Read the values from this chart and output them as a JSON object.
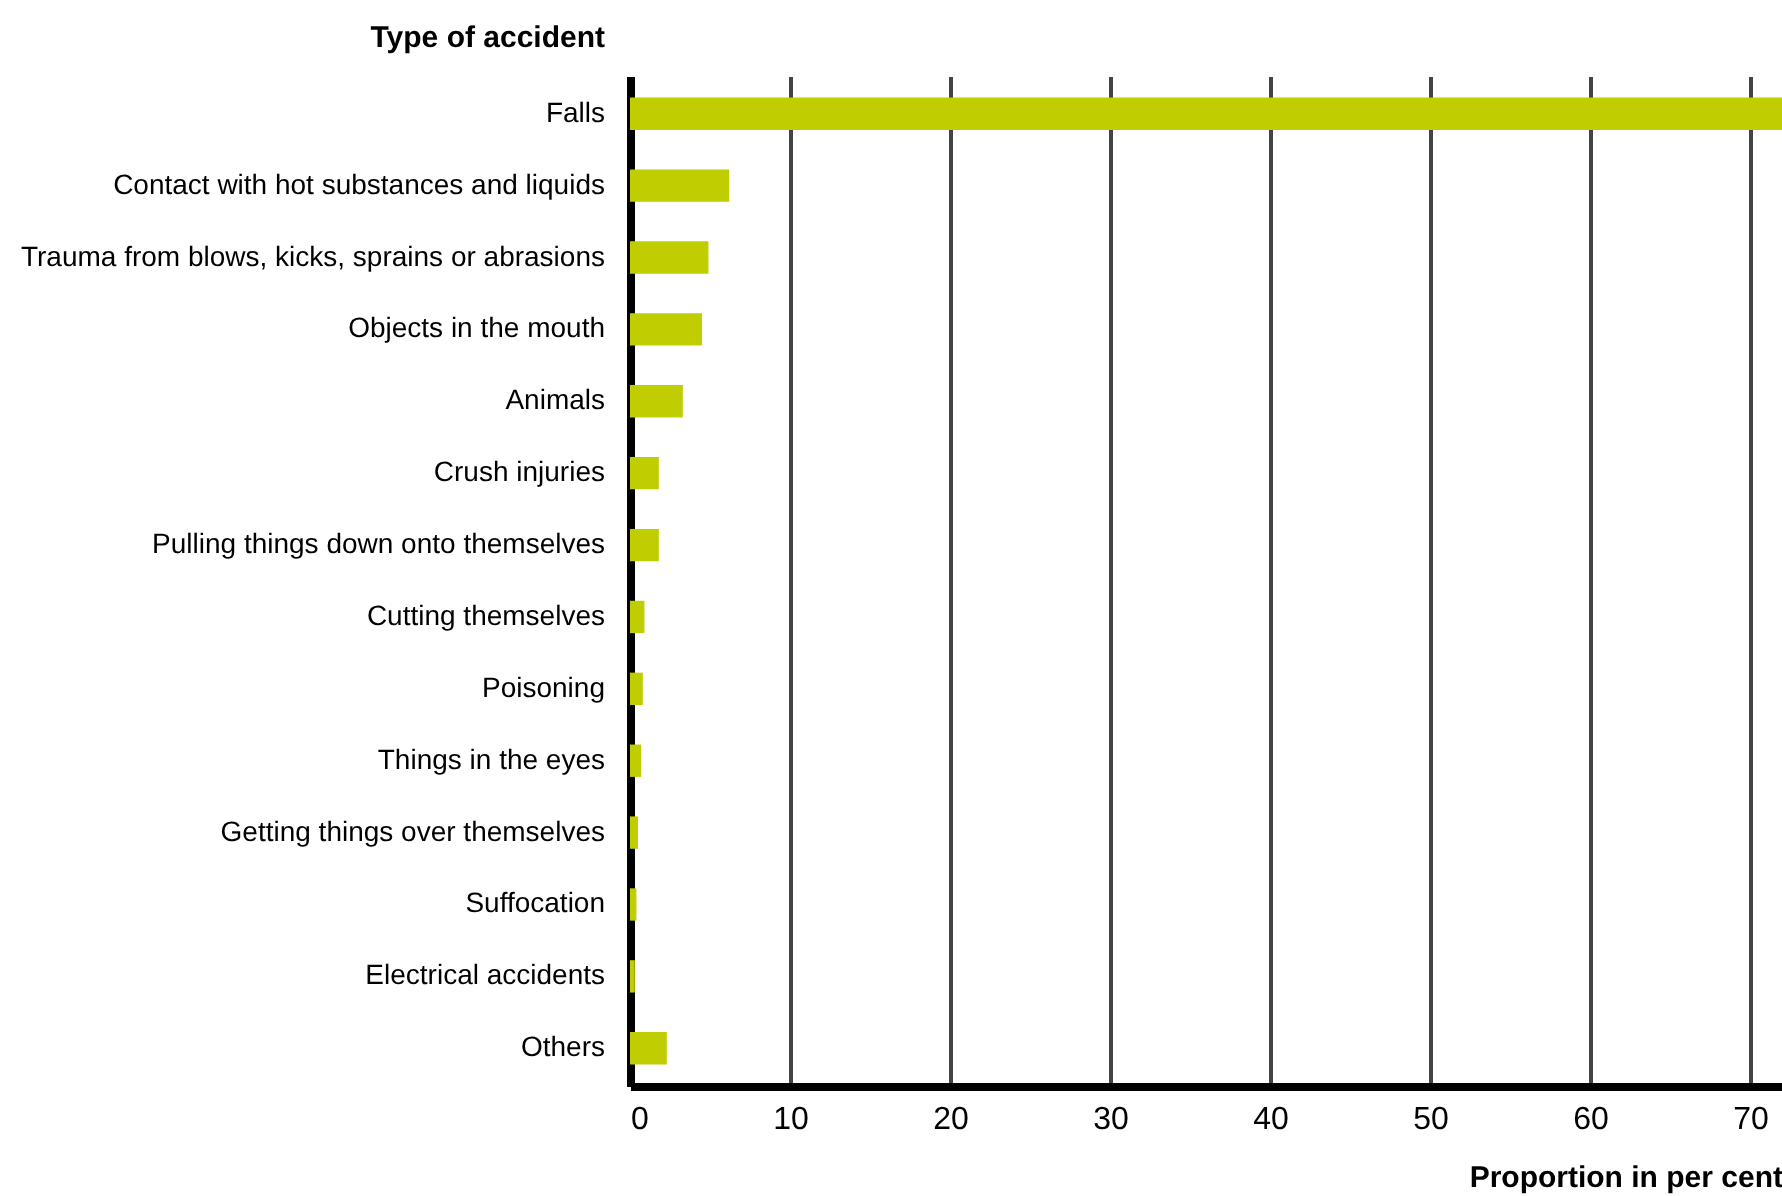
{
  "chart_data": {
    "type": "bar",
    "orientation": "horizontal",
    "xlabel": "Proportion in per cent",
    "ylabel": "Type of accident",
    "categories": [
      "Falls",
      "Contact with hot substances and liquids",
      "Trauma from blows, kicks, sprains or abrasions",
      "Objects in the mouth",
      "Animals",
      "Crush injuries",
      "Pulling things down onto themselves",
      "Cutting themselves",
      "Poisoning",
      "Things in the eyes",
      "Getting things over themselves",
      "Suffocation",
      "Electrical accidents",
      "Others"
    ],
    "values": [
      72,
      6.2,
      4.9,
      4.5,
      3.3,
      1.8,
      1.8,
      0.9,
      0.8,
      0.7,
      0.5,
      0.4,
      0.3,
      2.3
    ],
    "color": "#c0cd00",
    "xlim": [
      0,
      72
    ],
    "xticks": [
      0,
      10,
      20,
      30,
      40,
      50,
      60,
      70
    ],
    "grid": "x"
  }
}
